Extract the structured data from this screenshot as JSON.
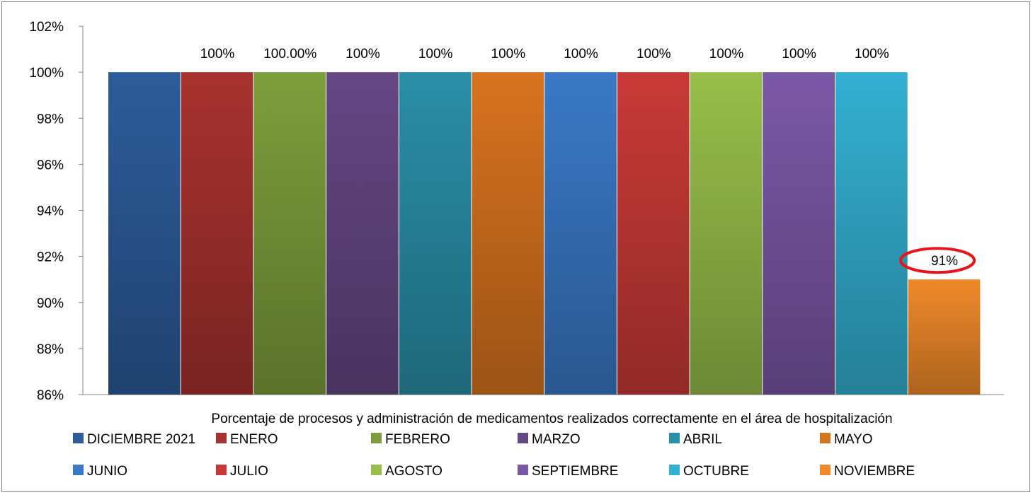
{
  "chart_data": {
    "type": "bar",
    "category_label": "Porcentaje de procesos y administración de medicamentos realizados correctamente en el área de hospitalización",
    "series": [
      {
        "name": "DICIEMBRE 2021",
        "value": 100,
        "label": "",
        "color": "#2d5c9a"
      },
      {
        "name": "ENERO",
        "value": 100,
        "label": "100%",
        "color": "#a8322f"
      },
      {
        "name": "FEBRERO",
        "value": 100,
        "label": "100.00%",
        "color": "#7d9e3c"
      },
      {
        "name": "MARZO",
        "value": 100,
        "label": "100%",
        "color": "#654784"
      },
      {
        "name": "ABRIL",
        "value": 100,
        "label": "100%",
        "color": "#2a8fa8"
      },
      {
        "name": "MAYO",
        "value": 100,
        "label": "100%",
        "color": "#d8731f"
      },
      {
        "name": "JUNIO",
        "value": 100,
        "label": "100%",
        "color": "#3a79c6"
      },
      {
        "name": "JULIO",
        "value": 100,
        "label": "100%",
        "color": "#c93a37"
      },
      {
        "name": "AGOSTO",
        "value": 100,
        "label": "100%",
        "color": "#98be4a"
      },
      {
        "name": "SEPTIEMBRE",
        "value": 100,
        "label": "100%",
        "color": "#7b58a6"
      },
      {
        "name": "OCTUBRE",
        "value": 100,
        "label": "100%",
        "color": "#34b0d2"
      },
      {
        "name": "NOVIEMBRE",
        "value": 91,
        "label": "91%",
        "color": "#f08a2a",
        "highlight": true
      }
    ],
    "yticks": [
      "86%",
      "88%",
      "90%",
      "92%",
      "94%",
      "96%",
      "98%",
      "100%",
      "102%"
    ],
    "ylim": [
      86,
      102
    ],
    "legend_position": "bottom",
    "highlight_color": "#e8141b"
  }
}
